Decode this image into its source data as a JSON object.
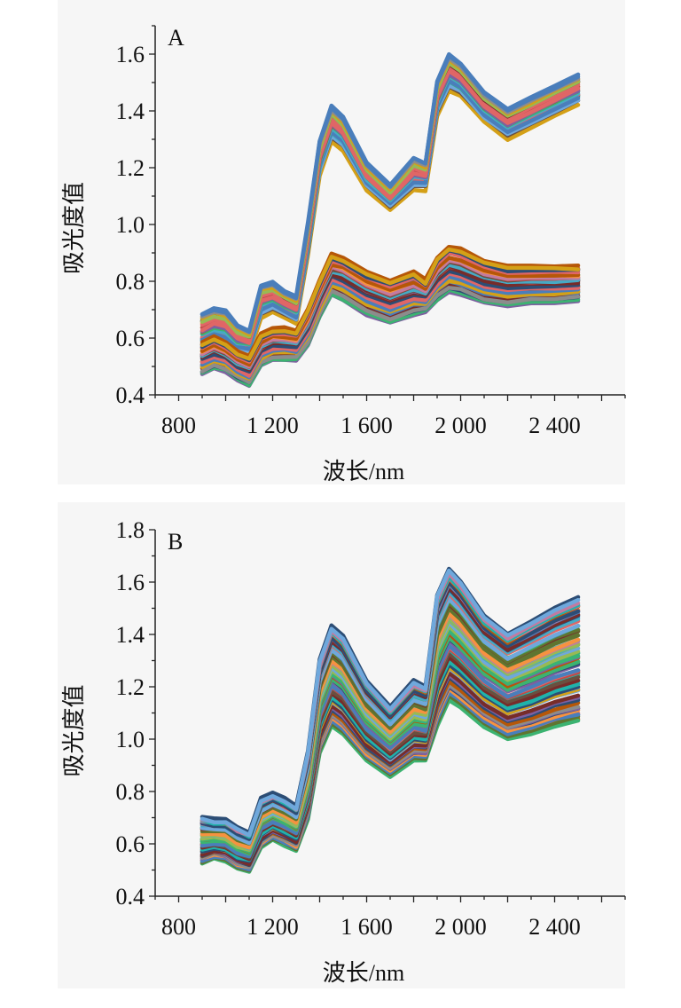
{
  "palette": [
    "#4a7ebb",
    "#be4b48",
    "#98b954",
    "#7d60a0",
    "#46aac5",
    "#f69240",
    "#2c4d75",
    "#772c2a",
    "#5f7530",
    "#b65708",
    "#8c8c8c",
    "#d4a017",
    "#3cb371",
    "#e06666",
    "#6fa8dc",
    "#c27ba0",
    "#6b4f3f",
    "#20b2aa"
  ],
  "chart_data": [
    {
      "type": "line",
      "panel_label": "A",
      "xlabel": "波长/nm",
      "ylabel": "吸光度值",
      "xlim": [
        700,
        2700
      ],
      "ylim": [
        0.4,
        1.7
      ],
      "xticks": [
        800,
        1200,
        1600,
        2000,
        2400
      ],
      "xtick_labels": [
        "800",
        "1 200",
        "1 600",
        "2 000",
        "2 400"
      ],
      "yticks": [
        0.4,
        0.6,
        0.8,
        1.0,
        1.2,
        1.4,
        1.6
      ],
      "ytick_labels": [
        "0.4",
        "0.6",
        "0.8",
        "1.0",
        "1.2",
        "1.4",
        "1.6"
      ],
      "grid": false,
      "x": [
        900,
        950,
        1000,
        1050,
        1100,
        1150,
        1200,
        1250,
        1300,
        1350,
        1400,
        1450,
        1500,
        1600,
        1700,
        1800,
        1850,
        1900,
        1950,
        2000,
        2100,
        2200,
        2300,
        2400,
        2500
      ],
      "groups": [
        {
          "name": "upper",
          "count": 24,
          "upper": [
            0.68,
            0.7,
            0.69,
            0.64,
            0.62,
            0.78,
            0.79,
            0.76,
            0.74,
            1.0,
            1.29,
            1.41,
            1.37,
            1.21,
            1.13,
            1.23,
            1.21,
            1.5,
            1.59,
            1.56,
            1.46,
            1.4,
            1.44,
            1.48,
            1.52
          ],
          "lower": [
            0.57,
            0.59,
            0.58,
            0.55,
            0.55,
            0.68,
            0.7,
            0.68,
            0.66,
            0.9,
            1.18,
            1.3,
            1.27,
            1.13,
            1.06,
            1.13,
            1.13,
            1.39,
            1.48,
            1.46,
            1.37,
            1.31,
            1.35,
            1.39,
            1.43
          ]
        },
        {
          "name": "lower",
          "count": 40,
          "upper": [
            0.58,
            0.6,
            0.58,
            0.55,
            0.53,
            0.61,
            0.63,
            0.63,
            0.62,
            0.7,
            0.8,
            0.89,
            0.88,
            0.83,
            0.8,
            0.83,
            0.8,
            0.88,
            0.92,
            0.91,
            0.87,
            0.85,
            0.85,
            0.85,
            0.85
          ],
          "lower": [
            0.48,
            0.5,
            0.49,
            0.46,
            0.44,
            0.51,
            0.53,
            0.53,
            0.53,
            0.58,
            0.68,
            0.76,
            0.74,
            0.69,
            0.66,
            0.69,
            0.7,
            0.74,
            0.77,
            0.76,
            0.73,
            0.72,
            0.73,
            0.73,
            0.74
          ]
        }
      ]
    },
    {
      "type": "line",
      "panel_label": "B",
      "xlabel": "波长/nm",
      "ylabel": "吸光度值",
      "xlim": [
        700,
        2700
      ],
      "ylim": [
        0.4,
        1.8
      ],
      "xticks": [
        800,
        1200,
        1600,
        2000,
        2400
      ],
      "xtick_labels": [
        "800",
        "1 200",
        "1 600",
        "2 000",
        "2 400"
      ],
      "yticks": [
        0.4,
        0.6,
        0.8,
        1.0,
        1.2,
        1.4,
        1.6,
        1.8
      ],
      "ytick_labels": [
        "0.4",
        "0.6",
        "0.8",
        "1.0",
        "1.2",
        "1.4",
        "1.6",
        "1.8"
      ],
      "grid": false,
      "x": [
        900,
        950,
        1000,
        1050,
        1100,
        1150,
        1200,
        1250,
        1300,
        1350,
        1400,
        1450,
        1500,
        1600,
        1700,
        1800,
        1850,
        1900,
        1950,
        2000,
        2100,
        2200,
        2300,
        2400,
        2500
      ],
      "groups": [
        {
          "name": "all",
          "count": 70,
          "upper": [
            0.7,
            0.69,
            0.69,
            0.66,
            0.64,
            0.77,
            0.79,
            0.77,
            0.74,
            0.95,
            1.3,
            1.43,
            1.39,
            1.22,
            1.12,
            1.22,
            1.2,
            1.55,
            1.65,
            1.6,
            1.47,
            1.4,
            1.45,
            1.5,
            1.54
          ],
          "lower": [
            0.53,
            0.55,
            0.54,
            0.51,
            0.5,
            0.59,
            0.62,
            0.6,
            0.58,
            0.7,
            0.95,
            1.05,
            1.02,
            0.92,
            0.86,
            0.92,
            0.92,
            1.05,
            1.15,
            1.12,
            1.05,
            1.0,
            1.02,
            1.05,
            1.07
          ]
        }
      ]
    }
  ]
}
